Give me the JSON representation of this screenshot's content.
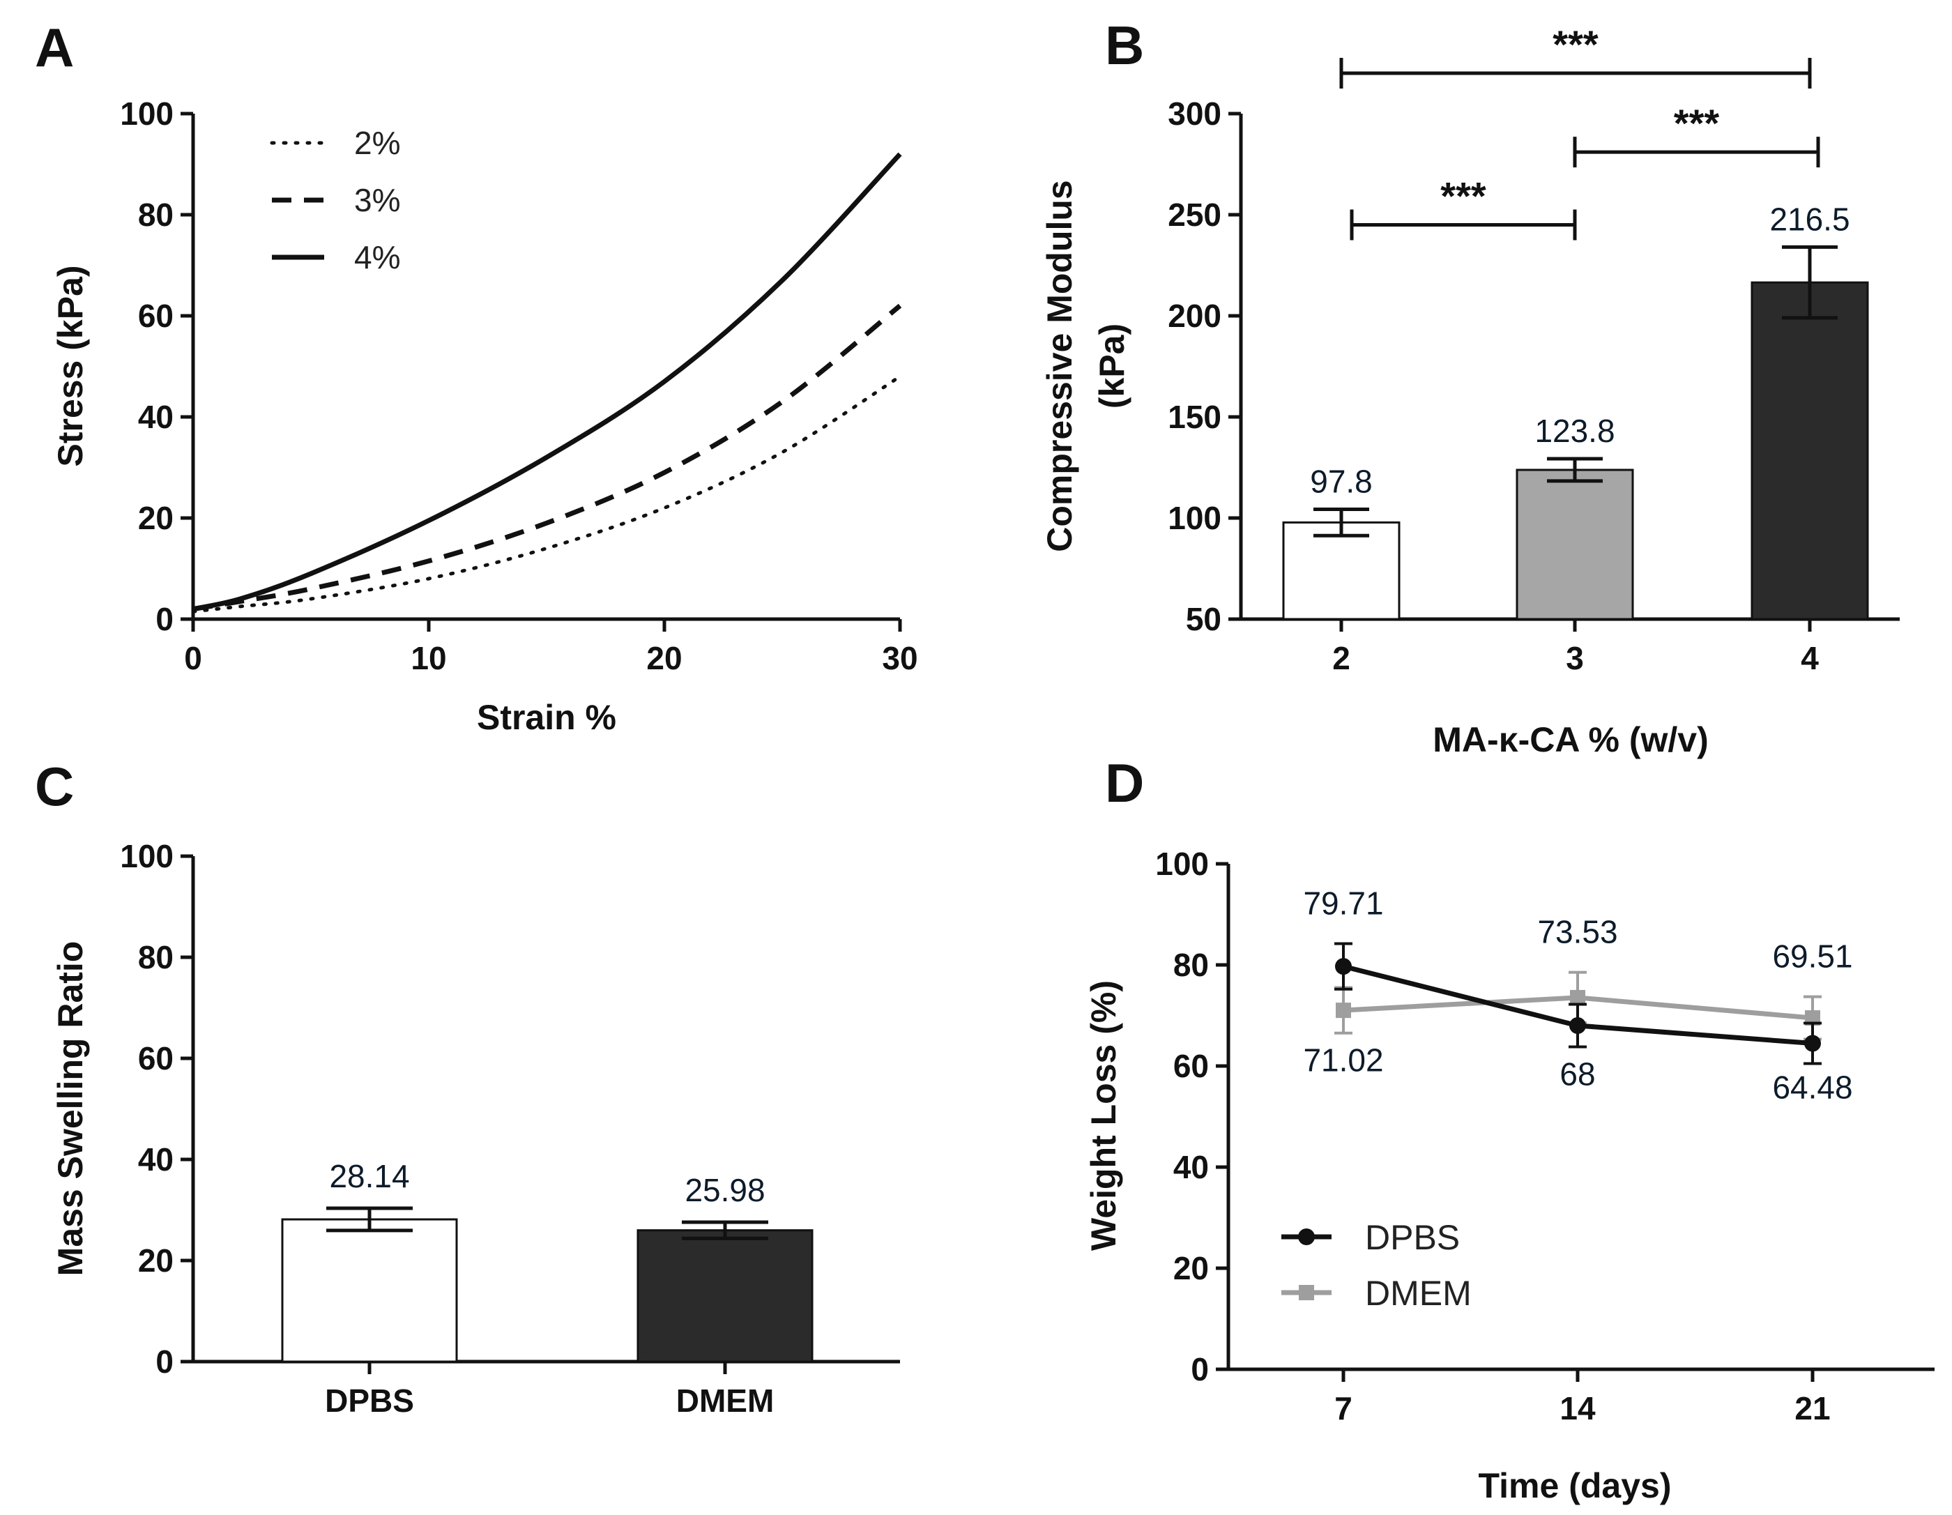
{
  "chart_data": [
    {
      "panel": "A",
      "type": "line",
      "xlabel": "Strain %",
      "ylabel": "Stress (kPa)",
      "xlim": [
        0,
        30
      ],
      "ylim": [
        0,
        100
      ],
      "xticks": [
        0,
        10,
        20,
        30
      ],
      "yticks": [
        0,
        20,
        40,
        60,
        80,
        100
      ],
      "legend_position": "top-left",
      "series": [
        {
          "name": "2%",
          "style": "dotted",
          "x": [
            0,
            2,
            5,
            10,
            15,
            20,
            25,
            30
          ],
          "y": [
            1.5,
            2.5,
            4,
            8,
            14,
            22,
            33,
            48
          ]
        },
        {
          "name": "3%",
          "style": "dashed",
          "x": [
            0,
            2,
            5,
            10,
            15,
            20,
            25,
            30
          ],
          "y": [
            2,
            3.5,
            6,
            11.5,
            19,
            29,
            43,
            62
          ]
        },
        {
          "name": "4%",
          "style": "solid",
          "x": [
            0,
            2,
            5,
            10,
            15,
            20,
            25,
            30
          ],
          "y": [
            2,
            4,
            9,
            19.5,
            32,
            47,
            67,
            92
          ]
        }
      ]
    },
    {
      "panel": "B",
      "type": "bar",
      "xlabel": "MA-κ-CA % (w/v)",
      "ylabel_lines": [
        "Compressive Modulus",
        "(kPa)"
      ],
      "categories": [
        "2",
        "3",
        "4"
      ],
      "values": [
        97.8,
        123.8,
        216.5
      ],
      "value_labels": [
        "97.8",
        "123.8",
        "216.5"
      ],
      "errors": [
        6.5,
        5.5,
        17.5
      ],
      "colors": [
        "#ffffff",
        "#a6a6a6",
        "#2b2b2b"
      ],
      "ylim": [
        50,
        300
      ],
      "yticks": [
        50,
        100,
        150,
        200,
        250,
        300
      ],
      "significance": [
        {
          "from": 0,
          "to": 2,
          "label": "***",
          "y": 320
        },
        {
          "from": 1,
          "to": 2,
          "label": "***",
          "y": 281
        },
        {
          "from": 0,
          "to": 1,
          "label": "***",
          "y": 245
        }
      ]
    },
    {
      "panel": "C",
      "type": "bar",
      "xlabel": "",
      "ylabel": "Mass Swelling Ratio",
      "categories": [
        "DPBS",
        "DMEM"
      ],
      "values": [
        28.14,
        25.98
      ],
      "value_labels": [
        "28.14",
        "25.98"
      ],
      "errors": [
        2.2,
        1.6
      ],
      "colors": [
        "#ffffff",
        "#2b2b2b"
      ],
      "ylim": [
        0,
        100
      ],
      "yticks": [
        0,
        20,
        40,
        60,
        80,
        100
      ]
    },
    {
      "panel": "D",
      "type": "line",
      "xlabel": "Time (days)",
      "ylabel": "Weight Loss (%)",
      "categories": [
        "7",
        "14",
        "21"
      ],
      "ylim": [
        0,
        100
      ],
      "yticks": [
        0,
        20,
        40,
        60,
        80,
        100
      ],
      "legend_position": "bottom-left",
      "series": [
        {
          "name": "DPBS",
          "color": "#111111",
          "marker": "circle",
          "values": [
            79.71,
            68,
            64.48
          ],
          "value_labels": [
            "79.71",
            "68",
            "64.48"
          ],
          "errors": [
            4.5,
            4.2,
            4.0
          ]
        },
        {
          "name": "DMEM",
          "color": "#9e9e9e",
          "marker": "square",
          "values": [
            71.02,
            73.53,
            69.51
          ],
          "value_labels": [
            "71.02",
            "73.53",
            "69.51"
          ],
          "errors": [
            4.5,
            5.0,
            4.2
          ]
        }
      ]
    }
  ]
}
